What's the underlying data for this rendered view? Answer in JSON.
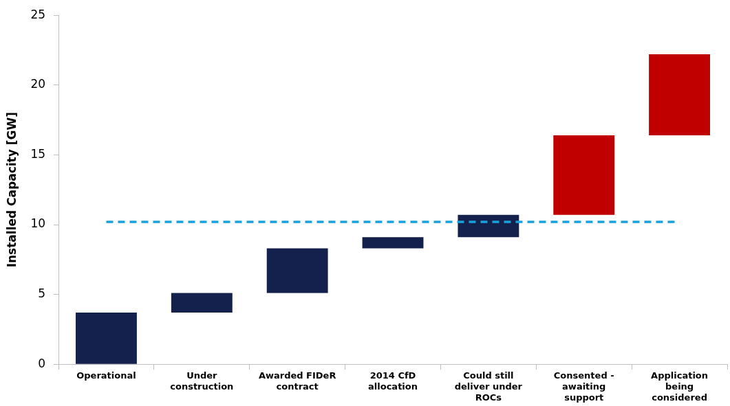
{
  "chart_data": {
    "type": "bar",
    "ylabel": "Installed Capacity [GW]",
    "categories": [
      "Operational",
      "Under construction",
      "Awarded FIDeR contract",
      "2014 CfD allocation",
      "Could still deliver under ROCs",
      "Consented - awaiting support",
      "Application being considered"
    ],
    "base": [
      0,
      3.7,
      5.1,
      8.3,
      9.1,
      10.7,
      16.4
    ],
    "values": [
      3.7,
      1.4,
      3.2,
      0.8,
      1.6,
      5.7,
      5.8
    ],
    "colors": [
      "#14214d",
      "#14214d",
      "#14214d",
      "#14214d",
      "#14214d",
      "#c00000",
      "#c00000"
    ],
    "ylim": [
      0,
      25
    ],
    "yticks": [
      0,
      5,
      10,
      15,
      20,
      25
    ],
    "ref_lines": [
      {
        "axis": "y",
        "value": 10.2,
        "color": "#1aa0dc",
        "line_style": "dashed"
      }
    ],
    "legend": false
  }
}
